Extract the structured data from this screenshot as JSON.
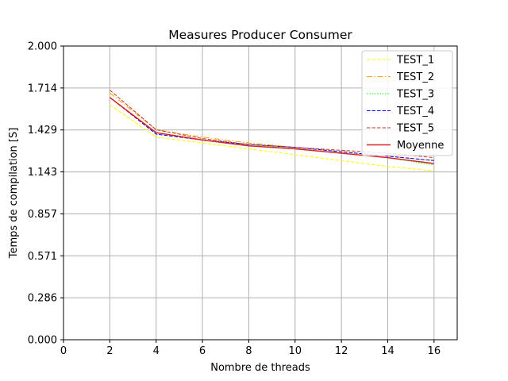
{
  "chart_data": {
    "type": "line",
    "title": "Measures Producer Consumer",
    "xlabel": "Nombre de threads",
    "ylabel": "Temps de compilation [S]",
    "xlim": [
      0,
      17
    ],
    "ylim": [
      0,
      2.0
    ],
    "x_ticks": [
      "0",
      "2",
      "4",
      "6",
      "8",
      "10",
      "12",
      "14",
      "16"
    ],
    "x_tick_values": [
      0,
      2,
      4,
      6,
      8,
      10,
      12,
      14,
      16
    ],
    "y_ticks": [
      "0.000",
      "0.286",
      "0.571",
      "0.857",
      "1.143",
      "1.429",
      "1.714",
      "2.000"
    ],
    "y_tick_values": [
      0.0,
      0.2857,
      0.5714,
      0.8571,
      1.1429,
      1.4286,
      1.7143,
      2.0
    ],
    "grid": true,
    "legend_position": "top-right",
    "x": [
      2,
      4,
      6,
      8,
      10,
      12,
      14,
      16
    ],
    "series": [
      {
        "name": "TEST_1",
        "color": "#ffff00",
        "dash": "dashed",
        "values": [
          1.6,
          1.38,
          1.34,
          1.3,
          1.26,
          1.22,
          1.18,
          1.15
        ]
      },
      {
        "name": "TEST_2",
        "color": "#ffa500",
        "dash": "dashdot",
        "values": [
          1.68,
          1.43,
          1.38,
          1.34,
          1.31,
          1.28,
          1.25,
          1.22
        ]
      },
      {
        "name": "TEST_3",
        "color": "#00ff00",
        "dash": "dotted",
        "values": [
          1.65,
          1.41,
          1.36,
          1.33,
          1.3,
          1.27,
          1.24,
          1.19
        ]
      },
      {
        "name": "TEST_4",
        "color": "#0000ff",
        "dash": "dashed",
        "values": [
          1.65,
          1.4,
          1.36,
          1.33,
          1.31,
          1.28,
          1.25,
          1.22
        ]
      },
      {
        "name": "TEST_5",
        "color": "#c0392b",
        "dash": "dashed",
        "values": [
          1.7,
          1.43,
          1.37,
          1.33,
          1.31,
          1.29,
          1.27,
          1.24
        ]
      },
      {
        "name": "Moyenne",
        "color": "#d62728",
        "dash": "solid",
        "values": [
          1.65,
          1.41,
          1.36,
          1.32,
          1.3,
          1.27,
          1.24,
          1.2
        ]
      }
    ]
  }
}
